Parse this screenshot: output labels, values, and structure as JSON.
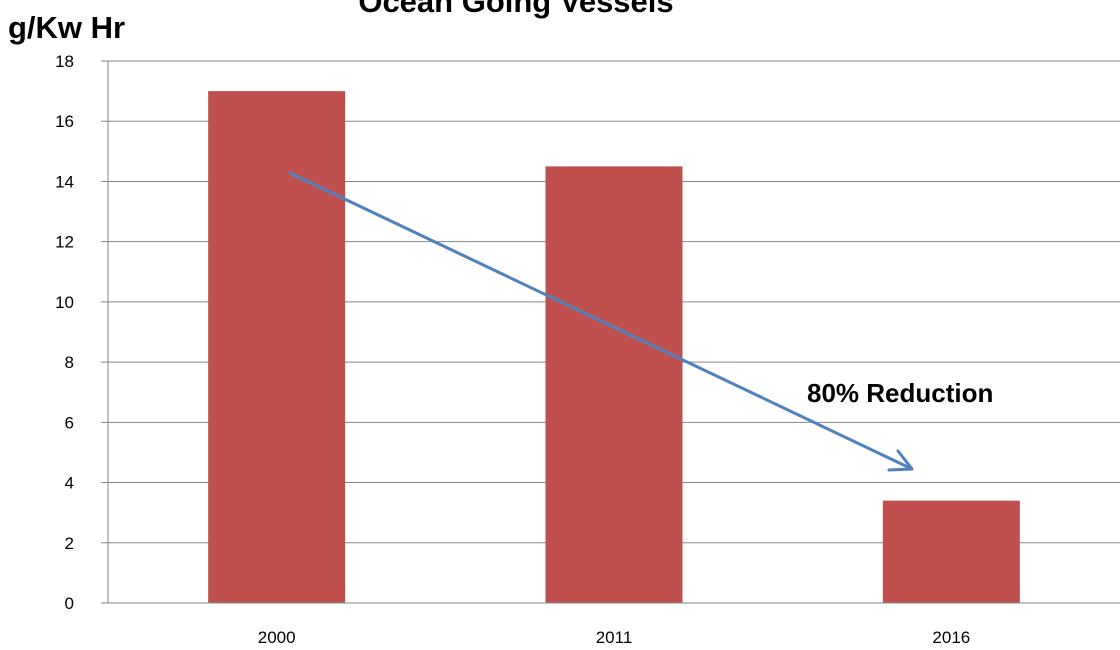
{
  "chart_data": {
    "type": "bar",
    "title": "Ocean Going Vessels",
    "ylabel": "g/Kw Hr",
    "xlabel": "",
    "categories": [
      "2000",
      "2011",
      "2016"
    ],
    "values": [
      17,
      14.5,
      3.4
    ],
    "ylim": [
      0,
      18
    ],
    "yticks": [
      0,
      2,
      4,
      6,
      8,
      10,
      12,
      14,
      16,
      18
    ],
    "grid": true,
    "legend": "none",
    "bar_color": "#c0504d",
    "annotation": {
      "text": "80% Reduction",
      "arrow_color": "#4f81bd"
    }
  }
}
